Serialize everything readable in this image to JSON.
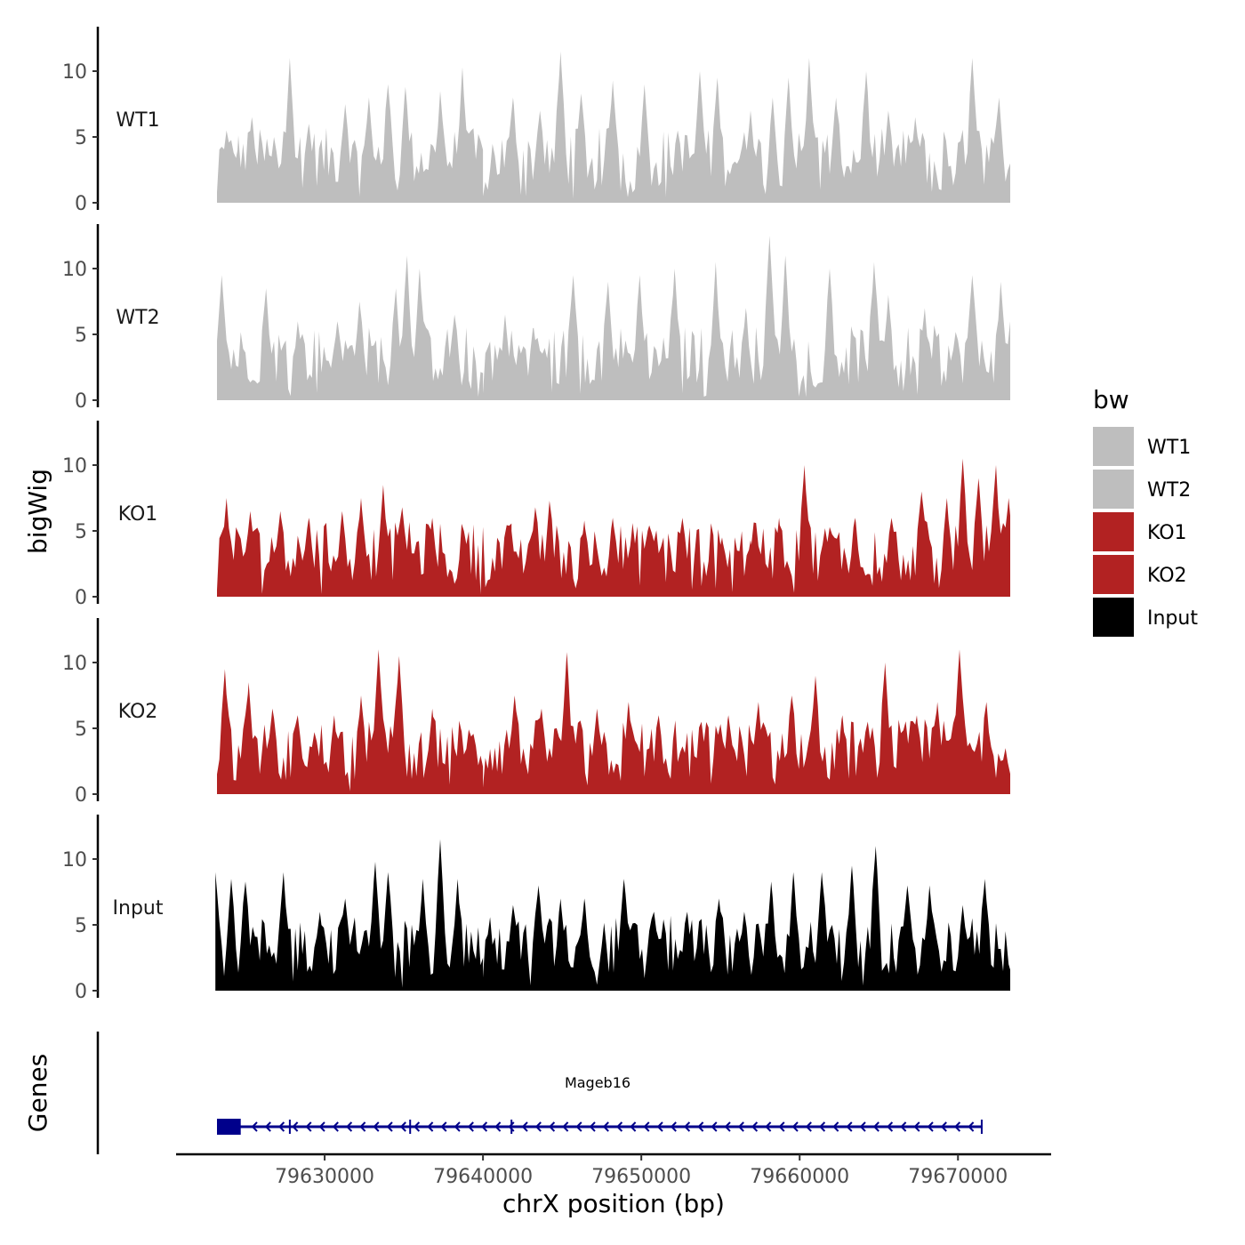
{
  "chart_data": {
    "type": "area",
    "title": "",
    "xlabel": "chrX position (bp)",
    "ylabel": "bigWig",
    "genes_label": "Genes",
    "xlim": [
      79622500,
      79673500
    ],
    "ylim": [
      0,
      13
    ],
    "yticks": [
      0,
      5,
      10
    ],
    "xticks": [
      79630000,
      79640000,
      79650000,
      79660000,
      79670000
    ],
    "xtick_labels": [
      "79630000",
      "79640000",
      "79650000",
      "79660000",
      "79670000"
    ],
    "legend": {
      "title": "bw",
      "placement": "right",
      "entries": [
        {
          "name": "WT1",
          "color": "#BEBEBE"
        },
        {
          "name": "WT2",
          "color": "#BEBEBE"
        },
        {
          "name": "KO1",
          "color": "#B22222"
        },
        {
          "name": "KO2",
          "color": "#B22222"
        },
        {
          "name": "Input",
          "color": "#000000"
        }
      ]
    },
    "tracks": [
      {
        "name": "WT1",
        "color": "#BEBEBE",
        "peaks": [
          [
            79623200,
            0.8
          ],
          [
            79623800,
            5.5
          ],
          [
            79624500,
            4.0
          ],
          [
            79625400,
            6.5
          ],
          [
            79626800,
            5.0
          ],
          [
            79627800,
            11.0
          ],
          [
            79629000,
            6.0
          ],
          [
            79631300,
            7.5
          ],
          [
            79632800,
            8.0
          ],
          [
            79634000,
            9.0
          ],
          [
            79635100,
            8.8
          ],
          [
            79637300,
            8.5
          ],
          [
            79638700,
            10.3
          ],
          [
            79640000,
            0.5
          ],
          [
            79641900,
            8.0
          ],
          [
            79643600,
            7.0
          ],
          [
            79644900,
            11.5
          ],
          [
            79646200,
            8.3
          ],
          [
            79648200,
            9.3
          ],
          [
            79650200,
            9.0
          ],
          [
            79652300,
            5.5
          ],
          [
            79653700,
            10.0
          ],
          [
            79654800,
            9.5
          ],
          [
            79656900,
            7.0
          ],
          [
            79658300,
            8.0
          ],
          [
            79659300,
            9.5
          ],
          [
            79660600,
            11.0
          ],
          [
            79662300,
            8.0
          ],
          [
            79664200,
            10.0
          ],
          [
            79665600,
            7.0
          ],
          [
            79667300,
            6.5
          ],
          [
            79670900,
            11.0
          ],
          [
            79672600,
            8.0
          ],
          [
            79673300,
            3.0
          ]
        ],
        "values": [
          0.8,
          5.5,
          4.0,
          6.5,
          5.0,
          11.0,
          6.0,
          7.5,
          8.0,
          9.0,
          8.8,
          8.5,
          10.3,
          0.5,
          8.0,
          7.0,
          11.5,
          8.3,
          9.3,
          9.0,
          5.5,
          10.0,
          9.5,
          7.0,
          8.0,
          9.5,
          11.0,
          8.0,
          10.0,
          7.0,
          6.5,
          11.0,
          8.0,
          3.0
        ]
      },
      {
        "name": "WT2",
        "color": "#BEBEBE",
        "peaks": [
          [
            79623200,
            4.5
          ],
          [
            79623500,
            9.5
          ],
          [
            79626300,
            8.5
          ],
          [
            79628300,
            6.0
          ],
          [
            79630800,
            6.0
          ],
          [
            79632200,
            7.5
          ],
          [
            79634500,
            8.5
          ],
          [
            79635200,
            11.0
          ],
          [
            79636000,
            10.0
          ],
          [
            79638200,
            6.5
          ],
          [
            79640000,
            0.5
          ],
          [
            79641400,
            6.5
          ],
          [
            79643200,
            5.5
          ],
          [
            79645700,
            9.5
          ],
          [
            79647900,
            9.0
          ],
          [
            79649900,
            9.5
          ],
          [
            79652100,
            10.0
          ],
          [
            79654700,
            10.5
          ],
          [
            79656600,
            7.0
          ],
          [
            79658100,
            12.5
          ],
          [
            79659100,
            11.0
          ],
          [
            79661900,
            10.0
          ],
          [
            79664700,
            10.5
          ],
          [
            79665600,
            8.0
          ],
          [
            79667900,
            7.0
          ],
          [
            79670900,
            9.5
          ],
          [
            79672700,
            9.0
          ],
          [
            79673300,
            6.0
          ]
        ],
        "values": [
          4.5,
          9.5,
          8.5,
          6.0,
          6.0,
          7.5,
          8.5,
          11.0,
          10.0,
          6.5,
          0.5,
          6.5,
          5.5,
          9.5,
          9.0,
          9.5,
          10.0,
          10.5,
          7.0,
          12.5,
          11.0,
          10.0,
          10.5,
          8.0,
          7.0,
          9.5,
          9.0,
          6.0
        ]
      },
      {
        "name": "KO1",
        "color": "#B22222",
        "peaks": [
          [
            79623200,
            0.5
          ],
          [
            79623800,
            7.5
          ],
          [
            79625300,
            6.5
          ],
          [
            79627200,
            6.5
          ],
          [
            79629000,
            6.0
          ],
          [
            79631100,
            6.5
          ],
          [
            79632300,
            7.5
          ],
          [
            79633700,
            8.5
          ],
          [
            79634900,
            6.8
          ],
          [
            79636800,
            6.0
          ],
          [
            79638800,
            5.0
          ],
          [
            79641800,
            5.0
          ],
          [
            79643300,
            6.8
          ],
          [
            79644200,
            7.3
          ],
          [
            79646400,
            5.8
          ],
          [
            79648200,
            6.0
          ],
          [
            79650400,
            5.0
          ],
          [
            79652600,
            6.0
          ],
          [
            79655100,
            4.5
          ],
          [
            79656900,
            4.3
          ],
          [
            79658700,
            6.0
          ],
          [
            79660300,
            10.0
          ],
          [
            79661900,
            5.3
          ],
          [
            79663500,
            6.0
          ],
          [
            79665800,
            6.0
          ],
          [
            79667700,
            8.0
          ],
          [
            79669300,
            7.5
          ],
          [
            79670300,
            10.5
          ],
          [
            79671300,
            9.0
          ],
          [
            79672400,
            10.0
          ],
          [
            79673200,
            7.5
          ]
        ],
        "values": [
          0.5,
          7.5,
          6.5,
          6.5,
          6.0,
          6.5,
          7.5,
          8.5,
          6.8,
          6.0,
          5.0,
          5.0,
          6.8,
          7.3,
          5.8,
          6.0,
          5.0,
          6.0,
          4.5,
          4.3,
          6.0,
          10.0,
          5.3,
          6.0,
          6.0,
          8.0,
          7.5,
          10.5,
          9.0,
          10.0,
          7.5
        ]
      },
      {
        "name": "KO2",
        "color": "#B22222",
        "peaks": [
          [
            79623200,
            1.5
          ],
          [
            79623700,
            9.5
          ],
          [
            79625200,
            8.5
          ],
          [
            79626700,
            6.5
          ],
          [
            79628300,
            6.0
          ],
          [
            79630600,
            6.0
          ],
          [
            79632300,
            7.5
          ],
          [
            79633400,
            11.0
          ],
          [
            79634700,
            10.5
          ],
          [
            79636800,
            6.5
          ],
          [
            79638600,
            5.0
          ],
          [
            79640000,
            0.5
          ],
          [
            79642000,
            7.5
          ],
          [
            79643700,
            6.5
          ],
          [
            79645300,
            10.8
          ],
          [
            79647200,
            6.5
          ],
          [
            79649200,
            7.0
          ],
          [
            79651100,
            6.0
          ],
          [
            79653800,
            5.5
          ],
          [
            79655500,
            6.0
          ],
          [
            79657400,
            7.0
          ],
          [
            79659500,
            7.5
          ],
          [
            79661000,
            9.0
          ],
          [
            79662700,
            6.0
          ],
          [
            79665400,
            10.0
          ],
          [
            79667400,
            6.0
          ],
          [
            79668700,
            7.0
          ],
          [
            79670100,
            11.0
          ],
          [
            79671800,
            7.0
          ],
          [
            79673000,
            3.5
          ]
        ],
        "values": [
          1.5,
          9.5,
          8.5,
          6.5,
          6.0,
          6.0,
          7.5,
          11.0,
          10.5,
          6.5,
          5.0,
          0.5,
          7.5,
          6.5,
          10.8,
          6.5,
          7.0,
          6.0,
          5.5,
          6.0,
          7.0,
          7.5,
          9.0,
          6.0,
          10.0,
          6.0,
          7.0,
          11.0,
          7.0,
          3.5
        ]
      },
      {
        "name": "Input",
        "color": "#000000",
        "peaks": [
          [
            79623100,
            9.0
          ],
          [
            79624100,
            8.5
          ],
          [
            79625000,
            8.3
          ],
          [
            79627400,
            9.0
          ],
          [
            79629700,
            6.0
          ],
          [
            79631300,
            7.0
          ],
          [
            79633200,
            9.8
          ],
          [
            79634000,
            9.0
          ],
          [
            79636200,
            8.5
          ],
          [
            79637300,
            11.5
          ],
          [
            79638400,
            8.5
          ],
          [
            79640000,
            1.0
          ],
          [
            79641900,
            6.5
          ],
          [
            79643500,
            8.0
          ],
          [
            79644900,
            7.0
          ],
          [
            79646400,
            7.0
          ],
          [
            79648900,
            8.5
          ],
          [
            79650800,
            6.0
          ],
          [
            79652900,
            6.0
          ],
          [
            79654900,
            7.0
          ],
          [
            79656500,
            6.0
          ],
          [
            79658200,
            8.3
          ],
          [
            79659600,
            9.0
          ],
          [
            79661400,
            9.0
          ],
          [
            79663300,
            9.5
          ],
          [
            79664800,
            11.0
          ],
          [
            79666800,
            8.0
          ],
          [
            79668200,
            8.0
          ],
          [
            79670300,
            6.5
          ],
          [
            79671700,
            8.5
          ],
          [
            79673200,
            2.0
          ]
        ],
        "values": [
          9.0,
          8.5,
          8.3,
          9.0,
          6.0,
          7.0,
          9.8,
          9.0,
          8.5,
          11.5,
          8.5,
          1.0,
          6.5,
          8.0,
          7.0,
          7.0,
          8.5,
          6.0,
          6.0,
          7.0,
          6.0,
          8.3,
          9.0,
          9.0,
          9.5,
          11.0,
          8.0,
          8.0,
          6.5,
          8.5,
          2.0
        ]
      }
    ],
    "gene": {
      "name": "Mageb16",
      "start": 79623200,
      "end": 79671500,
      "strand": "-",
      "color": "#00008B",
      "exon": [
        79623200,
        79624700
      ],
      "intron_marks": [
        79627800,
        79635400,
        79641800,
        79671500
      ]
    }
  }
}
